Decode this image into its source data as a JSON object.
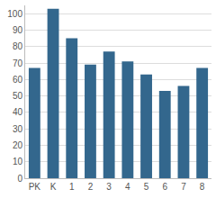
{
  "chart_data": {
    "type": "bar",
    "categories": [
      "PK",
      "K",
      "1",
      "2",
      "3",
      "4",
      "5",
      "6",
      "7",
      "8"
    ],
    "values": [
      67,
      103,
      85,
      69,
      77,
      71,
      63,
      53,
      56,
      67
    ],
    "color": "#33678d",
    "ylim": [
      0,
      105
    ],
    "yticks": [
      0,
      10,
      20,
      30,
      40,
      50,
      60,
      70,
      80,
      90,
      100
    ],
    "grid": true
  }
}
